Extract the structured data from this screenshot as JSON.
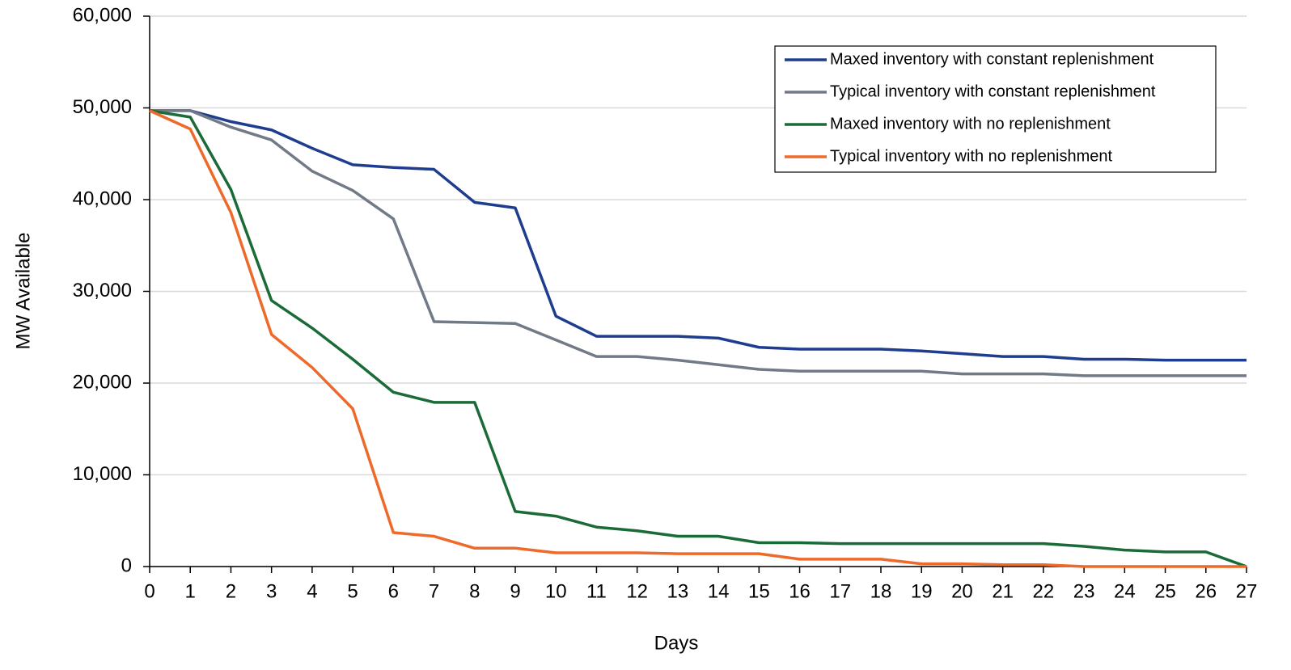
{
  "chart_data": {
    "type": "line",
    "x_label": "Days",
    "y_label": "MW Available",
    "x": [
      0,
      1,
      2,
      3,
      4,
      5,
      6,
      7,
      8,
      9,
      10,
      11,
      12,
      13,
      14,
      15,
      16,
      17,
      18,
      19,
      20,
      21,
      22,
      23,
      24,
      25,
      26,
      27
    ],
    "xlim": [
      0,
      27
    ],
    "xticks": [
      0,
      1,
      2,
      3,
      4,
      5,
      6,
      7,
      8,
      9,
      10,
      11,
      12,
      13,
      14,
      15,
      16,
      17,
      18,
      19,
      20,
      21,
      22,
      23,
      24,
      25,
      26,
      27
    ],
    "ylim": [
      0,
      60000
    ],
    "yticks": [
      0,
      {
        "value": 10000,
        "label": "10,000"
      },
      {
        "value": 20000,
        "label": "20,000"
      },
      {
        "value": 30000,
        "label": "30,000"
      },
      {
        "value": 40000,
        "label": "40,000"
      },
      {
        "value": 50000,
        "label": "50,000"
      },
      {
        "value": 60000,
        "label": "60,000"
      }
    ],
    "grid": true,
    "legend": "upper right",
    "series": [
      {
        "name": "Maxed inventory with constant replenishment",
        "color": "#1f3d8f",
        "values": [
          49700,
          49700,
          48500,
          47600,
          45600,
          43800,
          43500,
          43300,
          39700,
          39100,
          27300,
          25100,
          25100,
          25100,
          24900,
          23900,
          23700,
          23700,
          23700,
          23500,
          23200,
          22900,
          22900,
          22600,
          22600,
          22500,
          22500,
          22500
        ]
      },
      {
        "name": "Typical inventory with constant replenishment",
        "color": "#717a86",
        "values": [
          49700,
          49700,
          47900,
          46500,
          43100,
          41000,
          37900,
          26700,
          26600,
          26500,
          24700,
          22900,
          22900,
          22500,
          22000,
          21500,
          21300,
          21300,
          21300,
          21300,
          21000,
          21000,
          21000,
          20800,
          20800,
          20800,
          20800,
          20800
        ]
      },
      {
        "name": "Maxed inventory with no replenishment",
        "color": "#1b6b38",
        "values": [
          49700,
          49000,
          41100,
          29000,
          26000,
          22600,
          19000,
          17900,
          17900,
          6000,
          5500,
          4300,
          3900,
          3300,
          3300,
          2600,
          2600,
          2500,
          2500,
          2500,
          2500,
          2500,
          2500,
          2200,
          1800,
          1600,
          1600,
          0
        ]
      },
      {
        "name": "Typical inventory with no replenishment",
        "color": "#ee6a2a",
        "values": [
          49700,
          47700,
          38600,
          25300,
          21700,
          17200,
          3700,
          3300,
          2000,
          2000,
          1500,
          1500,
          1500,
          1400,
          1400,
          1400,
          800,
          800,
          800,
          300,
          300,
          200,
          200,
          0,
          0,
          0,
          0,
          0
        ]
      }
    ]
  }
}
